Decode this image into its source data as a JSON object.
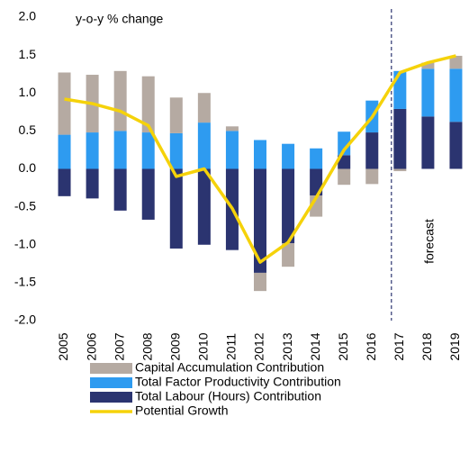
{
  "chart_data": {
    "type": "bar",
    "annotations": [
      "y-o-y % change",
      "forecast"
    ],
    "categories": [
      "2005",
      "2006",
      "2007",
      "2008",
      "2009",
      "2010",
      "2011",
      "2012",
      "2013",
      "2014",
      "2015",
      "2016",
      "2017",
      "2018",
      "2019"
    ],
    "series": [
      {
        "name": "Capital Accumulation Contribution",
        "type": "bar",
        "color": "#b5aaa2",
        "values": [
          0.82,
          0.76,
          0.79,
          0.74,
          0.47,
          0.39,
          0.06,
          -0.24,
          -0.31,
          -0.28,
          -0.21,
          -0.2,
          -0.03,
          0.08,
          0.17
        ]
      },
      {
        "name": "Total Factor Productivity Contribution",
        "type": "bar",
        "color": "#2e9bf0",
        "values": [
          0.45,
          0.48,
          0.5,
          0.48,
          0.47,
          0.61,
          0.5,
          0.38,
          0.33,
          0.27,
          0.31,
          0.42,
          0.5,
          0.63,
          0.7
        ]
      },
      {
        "name": "Total Labour (Hours) Contribution",
        "type": "bar",
        "color": "#2b3470",
        "values": [
          -0.36,
          -0.39,
          -0.55,
          -0.67,
          -1.05,
          -1.0,
          -1.07,
          -1.37,
          -0.98,
          -0.35,
          0.18,
          0.48,
          0.79,
          0.69,
          0.62
        ]
      },
      {
        "name": "Potential Growth",
        "type": "line",
        "color": "#f5d20a",
        "values": [
          0.92,
          0.86,
          0.76,
          0.57,
          -0.1,
          0.0,
          -0.52,
          -1.23,
          -0.97,
          -0.38,
          0.25,
          0.68,
          1.27,
          1.4,
          1.49
        ]
      }
    ],
    "ylim": [
      -2,
      2
    ],
    "yticks": [
      {
        "value": 2,
        "label": "2.0"
      },
      1.5,
      {
        "value": 1,
        "label": "1.0"
      },
      0.5,
      {
        "value": 0,
        "label": "0.0"
      },
      -0.5,
      {
        "value": -1,
        "label": "-1.0"
      },
      -1.5,
      {
        "value": -2,
        "label": "-2.0"
      }
    ]
  }
}
